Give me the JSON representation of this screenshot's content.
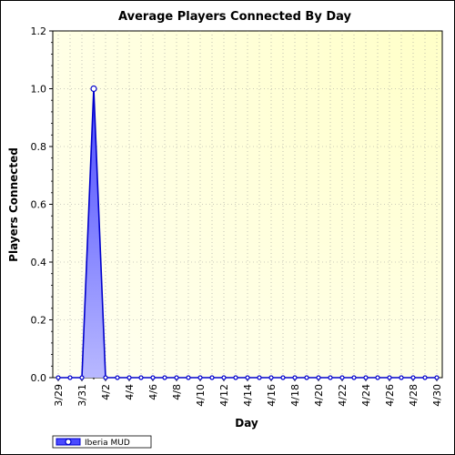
{
  "chart_data": {
    "type": "area",
    "title": "Average Players Connected By Day",
    "xlabel": "Day",
    "ylabel": "Players Connected",
    "ylim": [
      0,
      1.2
    ],
    "yticks": [
      "0.0",
      "0.2",
      "0.4",
      "0.6",
      "0.8",
      "1.0",
      "1.2"
    ],
    "x_tick_labels": [
      "3/29",
      "3/31",
      "4/2",
      "4/4",
      "4/6",
      "4/8",
      "4/10",
      "4/12",
      "4/14",
      "4/16",
      "4/18",
      "4/20",
      "4/22",
      "4/24",
      "4/26",
      "4/28",
      "4/30"
    ],
    "x": [
      "3/29",
      "3/30",
      "3/31",
      "4/1",
      "4/2",
      "4/3",
      "4/4",
      "4/5",
      "4/6",
      "4/7",
      "4/8",
      "4/9",
      "4/10",
      "4/11",
      "4/12",
      "4/13",
      "4/14",
      "4/15",
      "4/16",
      "4/17",
      "4/18",
      "4/19",
      "4/20",
      "4/21",
      "4/22",
      "4/23",
      "4/24",
      "4/25",
      "4/26",
      "4/27",
      "4/28",
      "4/29",
      "4/30"
    ],
    "series": [
      {
        "name": "Iberia MUD",
        "values": [
          0,
          0,
          0,
          1.0,
          0,
          0,
          0,
          0,
          0,
          0,
          0,
          0,
          0,
          0,
          0,
          0,
          0,
          0,
          0,
          0,
          0,
          0,
          0,
          0,
          0,
          0,
          0,
          0,
          0,
          0,
          0,
          0,
          0
        ]
      }
    ],
    "grid": true,
    "legend_position": "bottom-left",
    "colors": {
      "line": "#0000cc",
      "fill_top": "#4a4aff",
      "fill_bottom": "#b8b8ff",
      "plot_bg_light": "#fffff2",
      "plot_bg_warm": "#ffffc8"
    }
  }
}
